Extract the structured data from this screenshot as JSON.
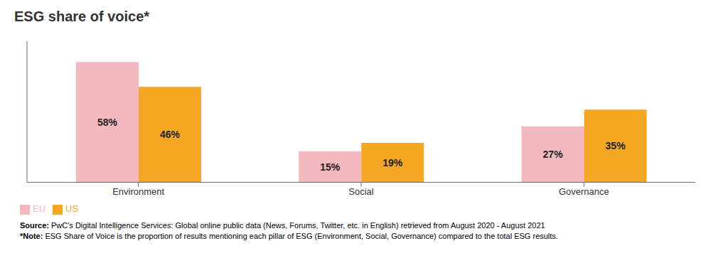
{
  "chart_data": {
    "type": "bar",
    "title": "ESG share of voice*",
    "categories": [
      "Environment",
      "Social",
      "Governance"
    ],
    "series": [
      {
        "name": "EU",
        "color": "#f4b8bf",
        "values": [
          58,
          15,
          27
        ],
        "value_labels": [
          "58%",
          "15%",
          "27%"
        ]
      },
      {
        "name": "US",
        "color": "#f5a623",
        "values": [
          46,
          19,
          35
        ],
        "value_labels": [
          "46%",
          "19%",
          "35%"
        ]
      }
    ],
    "ylim": [
      0,
      68
    ],
    "data_labels": true,
    "tick_labels": "x",
    "legend": "bottom",
    "annotations": [
      {
        "label": "Source:",
        "text": " PwC's Digital Intelligence Services: Global online public data (News, Forums, Twitter, etc. in English) retrieved from August 2020 - August 2021"
      },
      {
        "label": "*Note:",
        "text": " ESG Share of Voice is the proportion of results mentioning each pillar of ESG (Environment, Social, Governance) compared to the total ESG results."
      }
    ]
  }
}
